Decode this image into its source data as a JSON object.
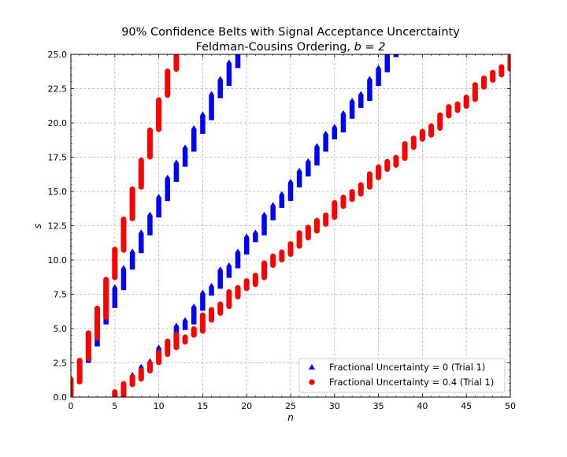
{
  "chart_data": {
    "type": "scatter",
    "title_line1": "90% Confidence Belts with Signal Acceptance Uncerctainty",
    "title_line2_prefix": "Feldman-Cousins Ordering, ",
    "title_line2_math": "b = 2",
    "xlabel": "n",
    "ylabel": "s",
    "xlim": [
      0,
      50
    ],
    "ylim": [
      0,
      25
    ],
    "xticks": [
      "0",
      "5",
      "10",
      "15",
      "20",
      "25",
      "30",
      "35",
      "40",
      "45",
      "50"
    ],
    "yticks": [
      "0.0",
      "2.5",
      "5.0",
      "7.5",
      "10.0",
      "12.5",
      "15.0",
      "17.5",
      "20.0",
      "22.5",
      "25.0"
    ],
    "grid": true,
    "legend_position": "lower-right",
    "series": [
      {
        "name": "Fractional Uncertainty = 0 (Trial 1)",
        "marker": "triangle",
        "color": "#0000ff",
        "intervals": [
          [
            0,
            0,
            1.1
          ],
          [
            1,
            1.0,
            2.6
          ],
          [
            2,
            2.5,
            4.4
          ],
          [
            3,
            3.7,
            6.1
          ],
          [
            4,
            5.3,
            7.6
          ],
          [
            5,
            6.5,
            8.0
          ],
          [
            6,
            7.8,
            9.4
          ],
          [
            7,
            9.3,
            10.6
          ],
          [
            8,
            10.5,
            12.0
          ],
          [
            9,
            11.8,
            13.3
          ],
          [
            10,
            13.1,
            14.6
          ],
          [
            11,
            14.3,
            16.0
          ],
          [
            12,
            15.7,
            17.1
          ],
          [
            13,
            16.8,
            18.2
          ],
          [
            14,
            17.9,
            19.6
          ],
          [
            15,
            19.2,
            20.6
          ],
          [
            16,
            20.2,
            22.1
          ],
          [
            17,
            21.8,
            23.2
          ],
          [
            18,
            22.7,
            24.4
          ],
          [
            19,
            24.0,
            26.0
          ],
          [
            20,
            25.2,
            26.5
          ],
          [
            21,
            26.3,
            27.9
          ],
          [
            22,
            27.5,
            29.5
          ],
          [
            0,
            0,
            0
          ],
          [
            1,
            0,
            0
          ],
          [
            2,
            0,
            0
          ],
          [
            3,
            0,
            0
          ],
          [
            4,
            0,
            0
          ],
          [
            5,
            0,
            0.15
          ],
          [
            6,
            0,
            0.65
          ],
          [
            7,
            0.85,
            1.6
          ],
          [
            8,
            1.7,
            2.2
          ],
          [
            9,
            2.1,
            2.6
          ],
          [
            10,
            2.8,
            3.6
          ],
          [
            11,
            3.1,
            3.9
          ],
          [
            12,
            4.0,
            5.2
          ],
          [
            13,
            4.9,
            5.6
          ],
          [
            14,
            5.3,
            6.6
          ],
          [
            15,
            6.3,
            7.6
          ],
          [
            16,
            7.4,
            8.1
          ],
          [
            17,
            7.9,
            9.3
          ],
          [
            18,
            8.7,
            9.6
          ],
          [
            19,
            9.4,
            10.6
          ],
          [
            20,
            10.4,
            11.7
          ],
          [
            21,
            11.3,
            12.0
          ],
          [
            22,
            11.8,
            13.3
          ],
          [
            23,
            12.9,
            14.0
          ],
          [
            24,
            13.8,
            14.8
          ],
          [
            25,
            14.3,
            15.7
          ],
          [
            26,
            15.3,
            16.5
          ],
          [
            27,
            16.1,
            17.2
          ],
          [
            28,
            16.9,
            18.3
          ],
          [
            29,
            17.9,
            19.2
          ],
          [
            30,
            18.8,
            19.7
          ],
          [
            31,
            19.3,
            20.7
          ],
          [
            32,
            20.3,
            21.6
          ],
          [
            33,
            21.1,
            22.1
          ],
          [
            34,
            21.6,
            23.2
          ],
          [
            35,
            22.7,
            24.0
          ],
          [
            36,
            23.7,
            25.0
          ],
          [
            37,
            24.8,
            25.3
          ]
        ]
      },
      {
        "name": "Fractional Uncertainty = 0.4 (Trial 1)",
        "marker": "circle",
        "color": "#ff0000",
        "intervals": [
          [
            0,
            0,
            1.3
          ],
          [
            1,
            1.1,
            2.7
          ],
          [
            2,
            2.8,
            4.7
          ],
          [
            3,
            4.3,
            6.5
          ],
          [
            4,
            5.8,
            8.6
          ],
          [
            5,
            8.7,
            10.8
          ],
          [
            6,
            10.7,
            13.0
          ],
          [
            7,
            13.0,
            15.2
          ],
          [
            8,
            15.3,
            17.3
          ],
          [
            9,
            17.5,
            19.5
          ],
          [
            10,
            19.5,
            21.7
          ],
          [
            11,
            22.0,
            23.8
          ],
          [
            12,
            23.9,
            26.0
          ],
          [
            0,
            0,
            0
          ],
          [
            1,
            0,
            0
          ],
          [
            2,
            0,
            0
          ],
          [
            3,
            0,
            0
          ],
          [
            4,
            0,
            0
          ],
          [
            5,
            0,
            0.4
          ],
          [
            6,
            0,
            1.0
          ],
          [
            7,
            0.9,
            1.5
          ],
          [
            8,
            1.3,
            2.0
          ],
          [
            9,
            1.9,
            2.5
          ],
          [
            10,
            2.5,
            3.3
          ],
          [
            11,
            3.1,
            4.1
          ],
          [
            12,
            3.6,
            4.6
          ],
          [
            13,
            4.0,
            4.4
          ],
          [
            14,
            4.5,
            5.0
          ],
          [
            15,
            4.8,
            6.0
          ],
          [
            16,
            5.6,
            6.4
          ],
          [
            17,
            6.1,
            6.8
          ],
          [
            18,
            6.6,
            7.7
          ],
          [
            19,
            7.3,
            8.0
          ],
          [
            20,
            7.9,
            8.5
          ],
          [
            21,
            8.2,
            8.9
          ],
          [
            22,
            8.7,
            9.8
          ],
          [
            23,
            9.6,
            10.3
          ],
          [
            24,
            10.0,
            10.6
          ],
          [
            25,
            10.4,
            11.2
          ],
          [
            26,
            11.0,
            12.0
          ],
          [
            27,
            11.6,
            12.4
          ],
          [
            28,
            12.1,
            12.9
          ],
          [
            29,
            12.6,
            13.3
          ],
          [
            30,
            13.1,
            14.2
          ],
          [
            31,
            13.9,
            14.6
          ],
          [
            32,
            14.4,
            15.0
          ],
          [
            33,
            14.8,
            15.5
          ],
          [
            34,
            15.3,
            16.3
          ],
          [
            35,
            16.0,
            16.8
          ],
          [
            36,
            16.6,
            17.2
          ],
          [
            37,
            16.9,
            17.5
          ],
          [
            38,
            17.4,
            18.5
          ],
          [
            39,
            18.2,
            18.9
          ],
          [
            40,
            18.8,
            19.4
          ],
          [
            41,
            19.1,
            19.8
          ],
          [
            42,
            19.6,
            20.6
          ],
          [
            43,
            20.5,
            21.2
          ],
          [
            44,
            20.9,
            21.4
          ],
          [
            45,
            21.2,
            21.9
          ],
          [
            46,
            21.7,
            22.8
          ],
          [
            47,
            22.6,
            23.3
          ],
          [
            48,
            23.1,
            23.7
          ],
          [
            49,
            23.5,
            24.1
          ],
          [
            50,
            23.9,
            25.1
          ]
        ]
      }
    ]
  }
}
